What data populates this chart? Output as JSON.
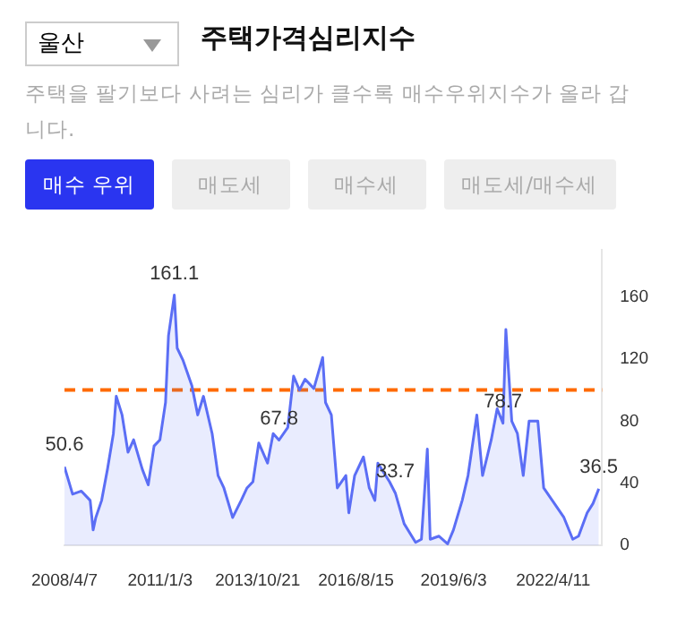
{
  "chart_data": {
    "type": "area",
    "title": "주택가격심리지수",
    "subtitle": "주택을 팔기보다 사려는 심리가 클수록 매수우위지수가 올라 갑니다.",
    "annotations": [
      "울산",
      "매수 우위",
      "매도세",
      "매수세",
      "매도세/매수세",
      {
        "text": "50.6",
        "x": "2008-04-07",
        "y": 50.6
      },
      {
        "text": "161.1",
        "x": "2011-06",
        "y": 161.1
      },
      {
        "text": "67.8",
        "x": "2014-06",
        "y": 67.8
      },
      {
        "text": "33.7",
        "x": "2017-10",
        "y": 33.7
      },
      {
        "text": "78.7",
        "x": "2020-11",
        "y": 78.7
      },
      {
        "text": "36.5",
        "x": "2023-08",
        "y": 36.5
      }
    ],
    "x": [
      "2008-04-07",
      "2008-07",
      "2008-10",
      "2009-01",
      "2009-02",
      "2009-03",
      "2009-05",
      "2009-07",
      "2009-09",
      "2009-10",
      "2009-12",
      "2010-02",
      "2010-04",
      "2010-07",
      "2010-09",
      "2010-11",
      "2011-01",
      "2011-03",
      "2011-04",
      "2011-06",
      "2011-07",
      "2011-09",
      "2011-12",
      "2012-02",
      "2012-04",
      "2012-07",
      "2012-09",
      "2012-11",
      "2013-02",
      "2013-05",
      "2013-07",
      "2013-09",
      "2013-11",
      "2014-02",
      "2014-04",
      "2014-06",
      "2014-09",
      "2014-11",
      "2015-01",
      "2015-03",
      "2015-06",
      "2015-09",
      "2015-10",
      "2015-12",
      "2016-02",
      "2016-05",
      "2016-06",
      "2016-08",
      "2016-11",
      "2017-01",
      "2017-03",
      "2017-04",
      "2017-08",
      "2017-10",
      "2018-01",
      "2018-05",
      "2018-07",
      "2018-09",
      "2018-10",
      "2019-01",
      "2019-04",
      "2019-06",
      "2019-09",
      "2019-11",
      "2020-02",
      "2020-04",
      "2020-07",
      "2020-09",
      "2020-11",
      "2020-12",
      "2021-02",
      "2021-04",
      "2021-06",
      "2021-08",
      "2021-11",
      "2022-01",
      "2022-04",
      "2022-08",
      "2022-11",
      "2023-01",
      "2023-04",
      "2023-06",
      "2023-08"
    ],
    "series": [
      {
        "color": "#5b6ef5",
        "values": [
          50.6,
          33,
          35,
          29,
          10,
          18,
          29,
          49,
          72,
          96,
          84,
          60,
          68,
          49,
          39,
          64,
          68,
          92,
          135,
          161.1,
          127,
          119,
          103,
          84,
          96,
          72,
          45,
          37,
          18,
          29,
          37,
          41,
          66,
          53,
          72,
          67.8,
          76,
          109,
          100,
          107,
          101,
          121,
          92,
          84,
          37,
          45,
          21,
          45,
          57,
          37,
          29,
          53,
          41,
          33.7,
          14,
          2,
          4,
          62,
          4,
          6,
          1,
          10,
          29,
          45,
          84,
          45,
          68,
          88,
          78.7,
          139,
          80,
          72,
          45,
          80,
          80,
          37,
          29,
          18,
          4,
          6,
          21,
          27,
          36.5
        ]
      }
    ],
    "xlim": [
      "2008-04-07",
      "2023-09-04"
    ],
    "xticks": [
      {
        "value": "2008-04-07",
        "label": "2008/4/7"
      },
      {
        "value": "2011-01-03",
        "label": "2011/1/3"
      },
      {
        "value": "2013-10-21",
        "label": "2013/10/21"
      },
      {
        "value": "2016-08-15",
        "label": "2016/8/15"
      },
      {
        "value": "2019-06-03",
        "label": "2019/6/3"
      },
      {
        "value": "2022-04-11",
        "label": "2022/4/11"
      }
    ],
    "ylim": [
      0,
      190
    ],
    "yticks": [
      0,
      40,
      80,
      120,
      160
    ],
    "ref_lines": [
      {
        "axis": "y",
        "value": 100,
        "color": "#ff6a00",
        "line_style": "dashed"
      }
    ],
    "grid": false,
    "legend": false,
    "marker": "none",
    "line_style": "solid"
  }
}
